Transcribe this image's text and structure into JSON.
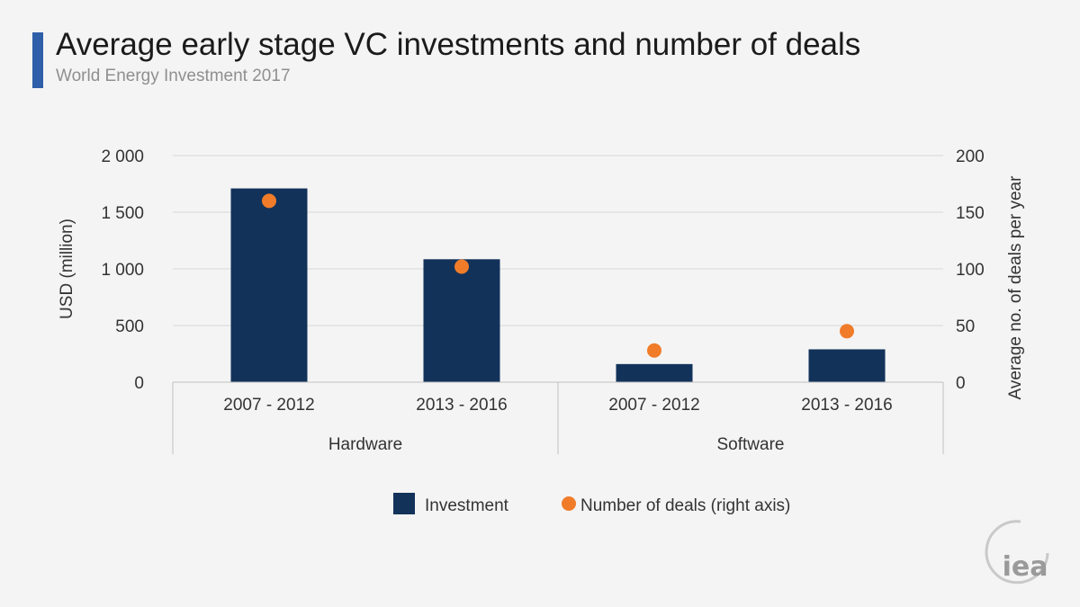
{
  "header": {
    "title": "Average early stage VC investments and number of deals",
    "subtitle": "World Energy Investment 2017",
    "accent_color": "#2e5fa8"
  },
  "logo": {
    "text": "iea"
  },
  "chart_data": {
    "type": "bar",
    "title": "Average early stage VC investments and number of deals",
    "subtitle": "World Energy Investment 2017",
    "groups": [
      {
        "name": "Hardware",
        "categories": [
          "2007 - 2012",
          "2013 - 2016"
        ]
      },
      {
        "name": "Software",
        "categories": [
          "2007 - 2012",
          "2013 - 2016"
        ]
      }
    ],
    "categories": [
      "2007 - 2012",
      "2013 - 2016",
      "2007 - 2012",
      "2013 - 2016"
    ],
    "series": [
      {
        "name": "Investment",
        "type": "bar",
        "axis": "left",
        "color": "#12325a",
        "values": [
          1710,
          1085,
          160,
          290
        ]
      },
      {
        "name": "Number of deals (right axis)",
        "type": "scatter",
        "axis": "right",
        "color": "#f07c2a",
        "values": [
          160,
          102,
          28,
          45
        ]
      }
    ],
    "ylabel": "USD (million)",
    "ylabel_right": "Average no. of deals per year",
    "ylim": [
      0,
      2000
    ],
    "ylim_right": [
      0,
      200
    ],
    "yticks": [
      "0",
      "500",
      "1 000",
      "1 500",
      "2 000"
    ],
    "yticks_right": [
      "0",
      "50",
      "100",
      "150",
      "200"
    ],
    "grid": true,
    "legend_position": "bottom"
  }
}
